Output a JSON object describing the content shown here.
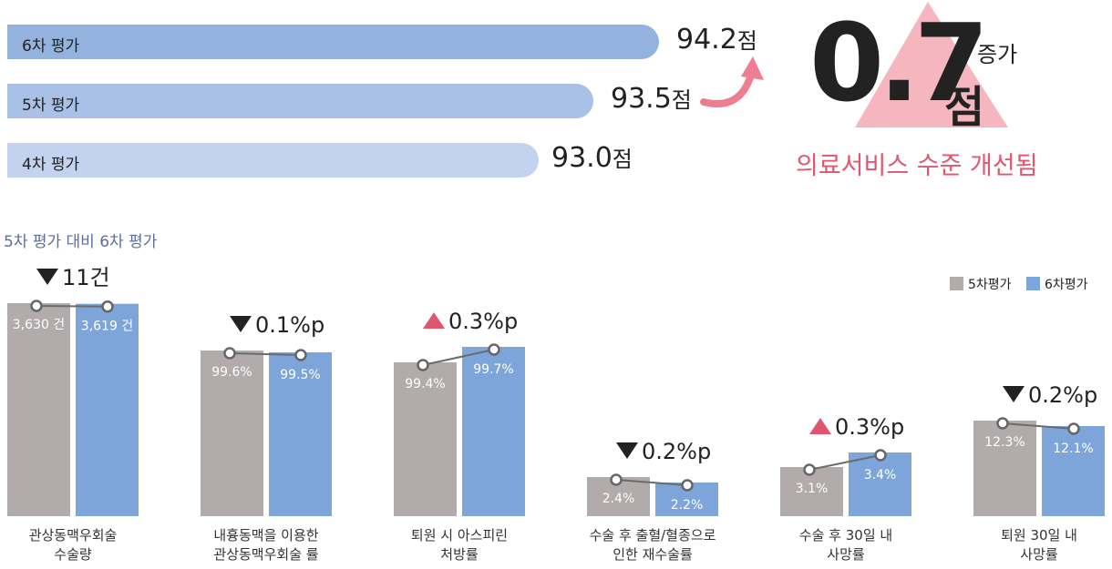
{
  "summary": {
    "bars": [
      {
        "label": "6차 평가",
        "value": "94.2",
        "unit": "점",
        "color": "#93b3de"
      },
      {
        "label": "5차 평가",
        "value": "93.5",
        "unit": "점",
        "color": "#a9c1e6"
      },
      {
        "label": "4차 평가",
        "value": "93.0",
        "unit": "점",
        "color": "#c3d3ef"
      }
    ],
    "increase_value": "0.7",
    "increase_unit": "점",
    "increase_word": "증가",
    "improvement_text": "의료서비스 수준 개선됨",
    "triangle_color": "#f6b6c0",
    "arrow_color": "#ee7d91"
  },
  "section_title": "5차 평가 대비 6차 평가",
  "legend": [
    {
      "label": "5차평가",
      "color": "#b1acab"
    },
    {
      "label": "6차평가",
      "color": "#7da5da"
    }
  ],
  "chart_data": {
    "type": "bar",
    "series": [
      {
        "name": "5차평가",
        "color": "#b1acab"
      },
      {
        "name": "6차평가",
        "color": "#7da5da"
      }
    ],
    "groups": [
      {
        "label": [
          "관상동맥우회술",
          "수술량"
        ],
        "v5": 3630,
        "v6": 3619,
        "l5": "3,630 건",
        "l6": "3,619 건",
        "change": "11건",
        "dir": "down"
      },
      {
        "label": [
          "내흉동맥을 이용한",
          "관상동맥우회술 률"
        ],
        "v5": 99.6,
        "v6": 99.5,
        "l5": "99.6%",
        "l6": "99.5%",
        "change": "0.1%p",
        "dir": "down"
      },
      {
        "label": [
          "퇴원 시 아스피린",
          "처방률"
        ],
        "v5": 99.4,
        "v6": 99.7,
        "l5": "99.4%",
        "l6": "99.7%",
        "change": "0.3%p",
        "dir": "up"
      },
      {
        "label": [
          "수술 후 출혈/혈종으로",
          "인한 재수술률"
        ],
        "v5": 2.4,
        "v6": 2.2,
        "l5": "2.4%",
        "l6": "2.2%",
        "change": "0.2%p",
        "dir": "down"
      },
      {
        "label": [
          "수술 후 30일 내",
          "사망률"
        ],
        "v5": 3.1,
        "v6": 3.4,
        "l5": "3.1%",
        "l6": "3.4%",
        "change": "0.3%p",
        "dir": "up"
      },
      {
        "label": [
          "퇴원 30일 내",
          "사망률"
        ],
        "v5": 12.3,
        "v6": 12.1,
        "l5": "12.3%",
        "l6": "12.1%",
        "change": "0.2%p",
        "dir": "down"
      }
    ],
    "up_color": "#e0566f",
    "down_color": "#222222"
  }
}
